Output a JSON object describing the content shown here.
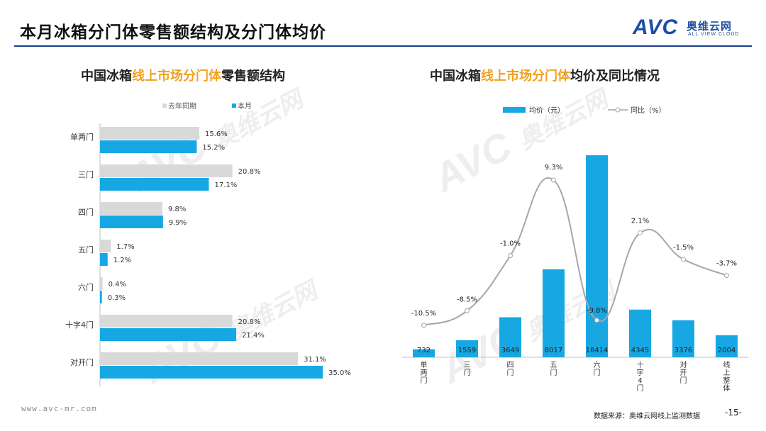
{
  "page": {
    "title": "本月冰箱分门体零售额结构及分门体均价",
    "logo": {
      "brand": "AVC",
      "cn": "奥维云网",
      "en": "ALL VIEW CLOUD"
    },
    "watermark_brand": "AVC",
    "watermark_cn": "奥维云网",
    "watermark_en": "ALL VIEW CLOUD",
    "footer_url": "www.avc-mr.com",
    "footer_source": "数据来源：奥维云网线上监测数据",
    "page_number": "-15-"
  },
  "colors": {
    "current": "#17a8e3",
    "last_year": "#d9d9d9",
    "line": "#a6a6a6",
    "highlight": "#f0a020",
    "brand": "#1d4ea3"
  },
  "chart_data": [
    {
      "type": "bar",
      "orientation": "horizontal",
      "title_prefix": "中国冰箱",
      "title_highlight": "线上市场分门体",
      "title_suffix": "零售额结构",
      "categories": [
        "单两门",
        "三门",
        "四门",
        "五门",
        "六门",
        "十字4门",
        "对开门"
      ],
      "series": [
        {
          "name": "去年同期",
          "values": [
            15.6,
            20.8,
            9.8,
            1.7,
            0.4,
            20.8,
            31.1
          ],
          "labels": [
            "15.6%",
            "20.8%",
            "9.8%",
            "1.7%",
            "0.4%",
            "20.8%",
            "31.1%"
          ]
        },
        {
          "name": "本月",
          "values": [
            15.2,
            17.1,
            9.9,
            1.2,
            0.3,
            21.4,
            35.0
          ],
          "labels": [
            "15.2%",
            "17.1%",
            "9.9%",
            "1.2%",
            "0.3%",
            "21.4%",
            "35.0%"
          ]
        }
      ],
      "xlim": [
        0,
        40
      ],
      "unit": "%"
    },
    {
      "type": "bar+line",
      "title_prefix": "中国冰箱",
      "title_highlight": "线上市场分门体",
      "title_suffix": "均价及同比情况",
      "categories": [
        "单两门",
        "三门",
        "四门",
        "五门",
        "六门",
        "十字4门",
        "对开门",
        "线上整体"
      ],
      "bar_series": {
        "name": "均价（元）",
        "values": [
          732,
          1559,
          3649,
          8017,
          18414,
          4345,
          3376,
          2004
        ],
        "labels": [
          "732",
          "1559",
          "3649",
          "8017",
          "18414",
          "4345",
          "3376",
          "2004"
        ]
      },
      "line_series": {
        "name": "同比（%）",
        "values": [
          -10.5,
          -8.5,
          -1.0,
          9.3,
          -9.8,
          2.1,
          -1.5,
          -3.7
        ],
        "labels": [
          "-10.5%",
          "-8.5%",
          "-1.0%",
          "9.3%",
          "-9.8%",
          "2.1%",
          "-1.5%",
          "-3.7%"
        ]
      },
      "bar_ylim": [
        0,
        20000
      ],
      "line_ylim": [
        -15,
        25
      ]
    }
  ]
}
